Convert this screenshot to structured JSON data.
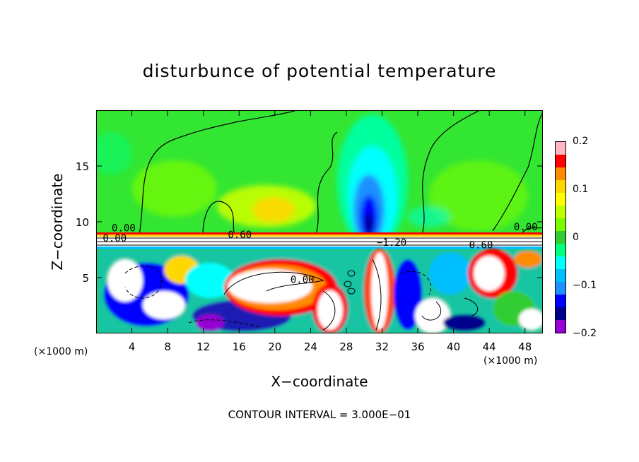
{
  "chart_data": {
    "type": "heatmap",
    "title": "disturbunce of potential temperature",
    "xlabel": "X−coordinate",
    "ylabel": "Z−coordinate",
    "x_unit_label_left": "(×1000 m)",
    "x_unit_label_right": "(×1000 m)",
    "footnote": "CONTOUR INTERVAL = 3.000E−01",
    "xlim": [
      0,
      50
    ],
    "ylim": [
      0,
      20
    ],
    "x_ticks": [
      4,
      8,
      12,
      16,
      20,
      24,
      28,
      32,
      36,
      40,
      44,
      48
    ],
    "x_tick_labels": [
      "4",
      "8",
      "12",
      "16",
      "20",
      "24",
      "28",
      "32",
      "36",
      "40",
      "44",
      "48"
    ],
    "y_ticks": [
      5,
      10,
      15
    ],
    "y_tick_labels": [
      "5",
      "10",
      "15"
    ],
    "colorbar": {
      "range": [
        -0.2,
        0.2
      ],
      "ticks": [
        0.2,
        0.1,
        0,
        -0.1,
        -0.2
      ],
      "tick_labels": [
        "0.2",
        "0.1",
        "0",
        "−0.1",
        "−0.2"
      ],
      "colors": [
        "#ffb6c1",
        "#ff0000",
        "#ff8c00",
        "#ffd700",
        "#ffff00",
        "#c0ff00",
        "#7cfc00",
        "#32cd32",
        "#00ff7f",
        "#00ffff",
        "#00bfff",
        "#1e90ff",
        "#0000ff",
        "#00008b",
        "#9400d3"
      ]
    },
    "contour_labels": [
      {
        "text": "0.00",
        "x": 3.0,
        "y": 9.2
      },
      {
        "text": "0.60",
        "x": 16.0,
        "y": 8.6
      },
      {
        "text": "0.00",
        "x": 2.0,
        "y": 8.3
      },
      {
        "text": "0.00",
        "x": 23.0,
        "y": 4.6
      },
      {
        "text": "−1.20",
        "x": 33.0,
        "y": 7.9
      },
      {
        "text": "0.60",
        "x": 43.0,
        "y": 7.7
      },
      {
        "text": "0.00",
        "x": 48.0,
        "y": 9.3
      }
    ],
    "layers": [
      {
        "name": "upper",
        "z_range": [
          9,
          20
        ],
        "values_description": "0 to 0.08 with negative core near x=30"
      },
      {
        "name": "lower",
        "z_range": [
          0,
          8
        ],
        "values_description": "strong positive and negative eddies"
      }
    ],
    "grid": false,
    "legend_position": "right"
  }
}
